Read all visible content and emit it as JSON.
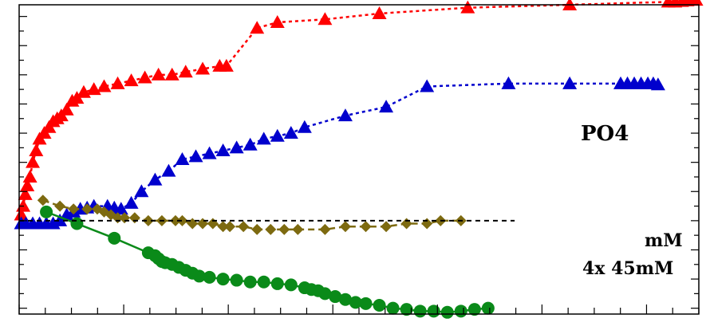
{
  "chart_data": {
    "type": "line",
    "title": "",
    "xlabel": "",
    "ylabel": "",
    "xlim": [
      0,
      100
    ],
    "ylim": [
      -1.6,
      3.7
    ],
    "grid": false,
    "annotations": {
      "po4": "PO4",
      "line1": "mM",
      "line2": "4x 45mM"
    },
    "reference_line": {
      "y": 0,
      "x_end": 72.9,
      "color": "#000000",
      "style": "dashed"
    },
    "series": [
      {
        "marker": "triangle",
        "color": "#ff0000",
        "line": "dotted",
        "x": [
          0.3,
          0.6,
          0.9,
          1.2,
          1.6,
          2,
          2.5,
          3,
          3.7,
          4.4,
          5,
          5.6,
          6.2,
          7,
          7.8,
          8.5,
          9.5,
          11,
          12.5,
          14.5,
          16.5,
          18.5,
          20.5,
          22.5,
          24.5,
          27,
          29.5,
          30.5,
          35,
          38,
          45,
          53,
          66,
          81,
          95.5,
          96.5,
          97.5,
          98.3,
          99,
          99.6
        ],
        "y": [
          0.1,
          0.25,
          0.45,
          0.6,
          0.75,
          1,
          1.2,
          1.4,
          1.5,
          1.6,
          1.7,
          1.75,
          1.8,
          1.9,
          2.05,
          2.1,
          2.2,
          2.25,
          2.3,
          2.35,
          2.4,
          2.45,
          2.5,
          2.5,
          2.55,
          2.6,
          2.65,
          2.65,
          3.3,
          3.4,
          3.45,
          3.55,
          3.65,
          3.7,
          3.75,
          3.75,
          3.76,
          3.77,
          3.78,
          3.78
        ]
      },
      {
        "marker": "triangle",
        "color": "#0000cd",
        "line": "dotted",
        "x": [
          0.3,
          1,
          2,
          3,
          4,
          5,
          6,
          7,
          8,
          9,
          10,
          11,
          13,
          14,
          15,
          16.5,
          18,
          20,
          22,
          24,
          26,
          28,
          30,
          32,
          34,
          36,
          38,
          40,
          42,
          48,
          54,
          60,
          72,
          81,
          88.5,
          89.5,
          90.5,
          91.5,
          92.5,
          93.3,
          94
        ],
        "y": [
          -0.05,
          -0.05,
          -0.05,
          -0.05,
          -0.05,
          -0.05,
          0,
          0.1,
          0.15,
          0.2,
          0.22,
          0.25,
          0.25,
          0.22,
          0.2,
          0.3,
          0.5,
          0.7,
          0.85,
          1.05,
          1.1,
          1.15,
          1.2,
          1.25,
          1.3,
          1.4,
          1.45,
          1.5,
          1.6,
          1.8,
          1.95,
          2.3,
          2.35,
          2.35,
          2.35,
          2.35,
          2.35,
          2.35,
          2.35,
          2.35,
          2.33
        ]
      },
      {
        "marker": "diamond",
        "color": "#7d6a10",
        "line": "dashed",
        "x": [
          3.5,
          6,
          8,
          10,
          11.5,
          12.5,
          13.5,
          14.5,
          15.5,
          17,
          19,
          21,
          23,
          24,
          25.5,
          27,
          28.5,
          30,
          31,
          33,
          35,
          37,
          39,
          41,
          45,
          48,
          51,
          54,
          57,
          60,
          62,
          65
        ],
        "y": [
          0.35,
          0.25,
          0.2,
          0.2,
          0.2,
          0.15,
          0.1,
          0.05,
          0.05,
          0.05,
          0,
          0,
          0,
          0,
          -0.05,
          -0.05,
          -0.05,
          -0.1,
          -0.1,
          -0.1,
          -0.15,
          -0.15,
          -0.15,
          -0.15,
          -0.15,
          -0.1,
          -0.1,
          -0.1,
          -0.05,
          -0.05,
          0,
          0
        ]
      },
      {
        "marker": "circle",
        "color": "#0a8a19",
        "line": "solid",
        "x": [
          4,
          8.5,
          14,
          19,
          20,
          20.5,
          21,
          21.5,
          22.5,
          23.5,
          24.5,
          25.5,
          26.5,
          28,
          30,
          32,
          34,
          36,
          38,
          40,
          42,
          43,
          44,
          45,
          46.5,
          48,
          49.5,
          51,
          53,
          55,
          57,
          59,
          61,
          63,
          65,
          67,
          69
        ],
        "y": [
          0.15,
          -0.05,
          -0.3,
          -0.55,
          -0.6,
          -0.65,
          -0.7,
          -0.72,
          -0.75,
          -0.8,
          -0.85,
          -0.9,
          -0.95,
          -0.97,
          -1,
          -1.02,
          -1.05,
          -1.05,
          -1.08,
          -1.1,
          -1.15,
          -1.18,
          -1.2,
          -1.25,
          -1.3,
          -1.35,
          -1.4,
          -1.42,
          -1.45,
          -1.5,
          -1.52,
          -1.55,
          -1.55,
          -1.57,
          -1.55,
          -1.52,
          -1.5
        ]
      }
    ]
  }
}
